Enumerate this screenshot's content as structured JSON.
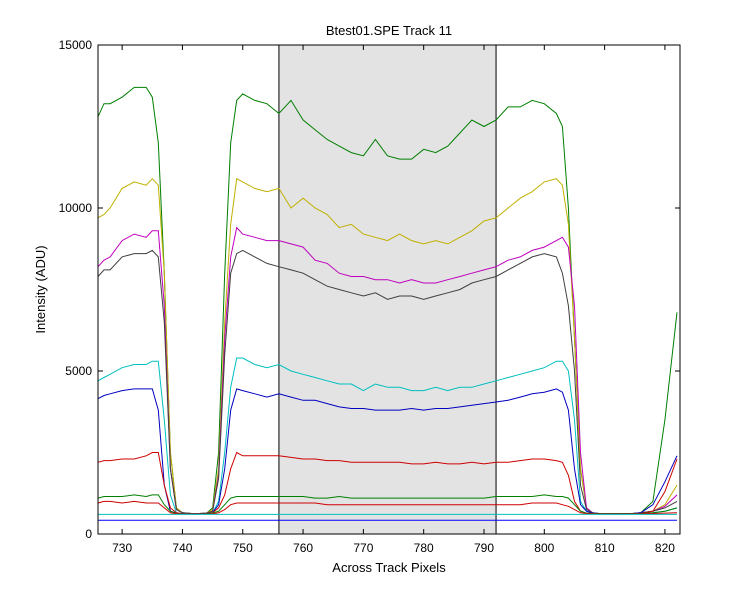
{
  "chart_data": {
    "type": "line",
    "title": "Btest01.SPE   Track 11",
    "xlabel": "Across Track Pixels",
    "ylabel": "Intensity (ADU)",
    "xlim": [
      726,
      822.5
    ],
    "ylim": [
      0,
      15000
    ],
    "x_ticks": [
      730,
      740,
      750,
      760,
      770,
      780,
      790,
      800,
      810,
      820
    ],
    "y_ticks": [
      0,
      5000,
      10000,
      15000
    ],
    "grid": false,
    "legend": "none",
    "highlight_region": {
      "x": [
        756,
        792
      ],
      "color": "#e3e3e3"
    },
    "x_common": [
      726,
      727,
      728,
      730,
      732,
      734,
      735,
      736,
      737,
      738,
      739,
      740,
      742,
      744,
      745,
      746,
      747,
      748,
      749,
      750,
      752,
      754,
      756,
      758,
      760,
      762,
      764,
      766,
      768,
      770,
      772,
      774,
      776,
      778,
      780,
      782,
      784,
      786,
      788,
      790,
      792,
      794,
      796,
      798,
      800,
      802,
      803,
      804,
      805,
      806,
      807,
      808,
      809,
      810,
      812,
      814,
      816,
      818,
      820,
      822
    ],
    "series": [
      {
        "color": "#007f00",
        "values": [
          12800,
          13200,
          13200,
          13400,
          13700,
          13700,
          13400,
          12000,
          8000,
          2500,
          800,
          650,
          620,
          640,
          800,
          2500,
          8000,
          12000,
          13300,
          13500,
          13300,
          13200,
          12900,
          13300,
          12700,
          12400,
          12100,
          11900,
          11700,
          11600,
          12100,
          11600,
          11500,
          11500,
          11800,
          11700,
          11900,
          12300,
          12700,
          12500,
          12700,
          13100,
          13100,
          13300,
          13200,
          12900,
          12500,
          10000,
          6000,
          2000,
          800,
          650,
          630,
          620,
          620,
          620,
          650,
          1000,
          3500,
          6800
        ]
      },
      {
        "color": "#c0b000",
        "values": [
          9700,
          9800,
          10000,
          10600,
          10800,
          10700,
          10900,
          10700,
          8000,
          2500,
          800,
          650,
          620,
          640,
          750,
          2000,
          6500,
          9500,
          10900,
          10800,
          10600,
          10500,
          10600,
          10000,
          10300,
          10000,
          9800,
          9400,
          9500,
          9200,
          9100,
          9000,
          9200,
          9000,
          8900,
          9000,
          8900,
          9100,
          9300,
          9600,
          9700,
          10000,
          10300,
          10500,
          10800,
          10900,
          10700,
          9500,
          6000,
          2000,
          800,
          650,
          630,
          620,
          620,
          620,
          650,
          700,
          900,
          1500
        ]
      },
      {
        "color": "#bf00bf",
        "values": [
          8200,
          8400,
          8500,
          9000,
          9200,
          9100,
          9300,
          9300,
          7000,
          2000,
          750,
          650,
          620,
          640,
          700,
          1800,
          6000,
          8500,
          9400,
          9200,
          9100,
          9000,
          9000,
          8900,
          8800,
          8400,
          8300,
          8000,
          7900,
          7900,
          7800,
          7800,
          7700,
          7800,
          7700,
          7700,
          7800,
          7900,
          8000,
          8100,
          8200,
          8400,
          8500,
          8700,
          8800,
          9000,
          9100,
          8800,
          7000,
          2500,
          800,
          650,
          630,
          620,
          620,
          620,
          650,
          700,
          850,
          1200
        ]
      },
      {
        "color": "#3f3f3f",
        "values": [
          7900,
          8100,
          8100,
          8500,
          8600,
          8600,
          8700,
          8500,
          6500,
          2000,
          750,
          650,
          620,
          640,
          700,
          1700,
          5500,
          8000,
          8600,
          8700,
          8500,
          8300,
          8200,
          8100,
          8000,
          7800,
          7600,
          7500,
          7400,
          7300,
          7400,
          7200,
          7300,
          7300,
          7200,
          7300,
          7400,
          7500,
          7700,
          7800,
          7900,
          8100,
          8300,
          8500,
          8600,
          8500,
          8000,
          7000,
          5000,
          1500,
          750,
          650,
          630,
          620,
          620,
          620,
          650,
          700,
          800,
          1000
        ]
      },
      {
        "color": "#00bfbf",
        "values": [
          4700,
          4800,
          4900,
          5100,
          5200,
          5200,
          5300,
          5300,
          3500,
          1200,
          650,
          620,
          610,
          620,
          650,
          1000,
          2500,
          4500,
          5400,
          5400,
          5200,
          5100,
          5200,
          5000,
          4900,
          4800,
          4700,
          4600,
          4600,
          4400,
          4600,
          4500,
          4500,
          4400,
          4400,
          4500,
          4400,
          4500,
          4500,
          4600,
          4700,
          4800,
          4900,
          5000,
          5100,
          5300,
          5300,
          5000,
          3500,
          1000,
          700,
          640,
          630,
          620,
          620,
          620,
          630,
          650,
          700,
          800
        ]
      },
      {
        "color": "#0000bf",
        "values": [
          4150,
          4250,
          4300,
          4400,
          4450,
          4450,
          4450,
          3800,
          1500,
          700,
          640,
          620,
          610,
          620,
          650,
          900,
          2000,
          3800,
          4450,
          4400,
          4300,
          4200,
          4300,
          4200,
          4100,
          4100,
          4000,
          3900,
          3850,
          3850,
          3800,
          3800,
          3800,
          3850,
          3800,
          3850,
          3850,
          3900,
          3950,
          4000,
          4050,
          4100,
          4200,
          4300,
          4350,
          4450,
          4350,
          3800,
          2000,
          900,
          700,
          640,
          630,
          620,
          620,
          620,
          650,
          900,
          1600,
          2400
        ]
      },
      {
        "color": "#cf0000",
        "values": [
          2200,
          2250,
          2250,
          2300,
          2300,
          2400,
          2500,
          2500,
          1500,
          800,
          650,
          620,
          610,
          620,
          650,
          800,
          1200,
          2000,
          2500,
          2400,
          2400,
          2400,
          2400,
          2350,
          2300,
          2300,
          2250,
          2250,
          2200,
          2200,
          2200,
          2200,
          2200,
          2150,
          2150,
          2200,
          2150,
          2150,
          2200,
          2150,
          2200,
          2200,
          2250,
          2300,
          2300,
          2250,
          2200,
          1800,
          1000,
          700,
          640,
          630,
          620,
          620,
          620,
          620,
          630,
          700,
          1300,
          2300
        ]
      },
      {
        "color": "#007f00",
        "values": [
          1100,
          1150,
          1150,
          1150,
          1200,
          1150,
          1200,
          1200,
          900,
          700,
          630,
          620,
          610,
          620,
          640,
          700,
          900,
          1100,
          1150,
          1150,
          1150,
          1150,
          1150,
          1150,
          1150,
          1100,
          1100,
          1150,
          1100,
          1100,
          1100,
          1100,
          1100,
          1100,
          1100,
          1100,
          1100,
          1100,
          1100,
          1100,
          1150,
          1150,
          1150,
          1150,
          1200,
          1150,
          1150,
          1100,
          900,
          700,
          640,
          630,
          620,
          620,
          620,
          620,
          630,
          650,
          700,
          800
        ]
      },
      {
        "color": "#cf0000",
        "values": [
          950,
          1000,
          1000,
          950,
          1000,
          950,
          950,
          950,
          800,
          650,
          620,
          610,
          610,
          610,
          620,
          650,
          750,
          900,
          950,
          950,
          950,
          950,
          950,
          950,
          950,
          950,
          900,
          900,
          900,
          900,
          900,
          900,
          900,
          900,
          900,
          900,
          900,
          900,
          900,
          900,
          900,
          900,
          900,
          950,
          950,
          950,
          900,
          850,
          750,
          650,
          630,
          620,
          610,
          610,
          610,
          610,
          620,
          630,
          640,
          650
        ]
      },
      {
        "color": "#00bfbf",
        "values": [
          600,
          600,
          600,
          600,
          600,
          600,
          600,
          600,
          600,
          600,
          600,
          600,
          600,
          600,
          600,
          600,
          600,
          600,
          600,
          600,
          600,
          600,
          600,
          600,
          600,
          600,
          600,
          600,
          600,
          600,
          600,
          600,
          600,
          600,
          600,
          600,
          600,
          600,
          600,
          600,
          600,
          600,
          600,
          600,
          600,
          600,
          600,
          600,
          600,
          600,
          600,
          600,
          600,
          600,
          600,
          600,
          600,
          600,
          600,
          600
        ]
      },
      {
        "color": "#0000ff",
        "values": [
          420,
          420,
          420,
          420,
          420,
          420,
          420,
          420,
          420,
          420,
          420,
          420,
          420,
          420,
          420,
          420,
          420,
          420,
          420,
          420,
          420,
          420,
          420,
          420,
          420,
          420,
          420,
          420,
          420,
          420,
          420,
          420,
          420,
          420,
          420,
          420,
          420,
          420,
          420,
          420,
          420,
          420,
          420,
          420,
          420,
          420,
          420,
          420,
          420,
          420,
          420,
          420,
          420,
          420,
          420,
          420,
          420,
          420,
          420,
          420
        ]
      }
    ]
  }
}
